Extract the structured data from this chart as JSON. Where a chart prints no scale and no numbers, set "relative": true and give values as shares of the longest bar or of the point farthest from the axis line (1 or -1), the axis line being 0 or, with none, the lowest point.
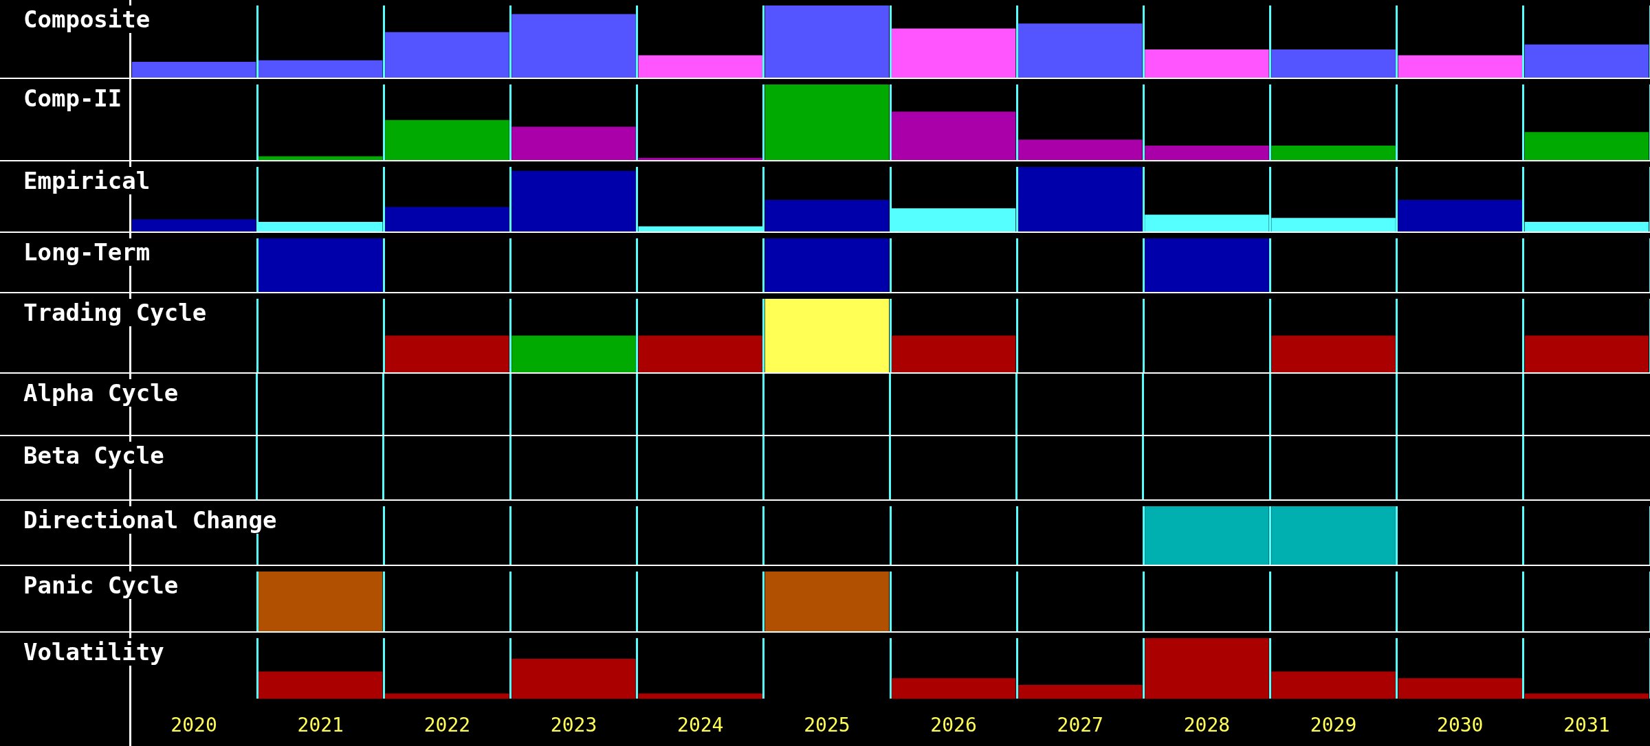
{
  "chart_data": [
    {
      "type": "bar",
      "title": "Composite",
      "categories": [
        "2020",
        "2021",
        "2022",
        "2023",
        "2024",
        "2025",
        "2026",
        "2027",
        "2028",
        "2029",
        "2030",
        "2031"
      ],
      "relative": true,
      "grid": "x",
      "tick_labels": false,
      "values": [
        0.22,
        0.24,
        0.63,
        0.88,
        0.31,
        1,
        0.68,
        0.75,
        0.39,
        0.39,
        0.31,
        0.46
      ],
      "colors": [
        "#5555ff",
        "#5555ff",
        "#5555ff",
        "#5555ff",
        "#ff55ff",
        "#5555ff",
        "#ff55ff",
        "#5555ff",
        "#ff55ff",
        "#5555ff",
        "#ff55ff",
        "#5555ff"
      ]
    },
    {
      "type": "bar",
      "title": "Comp-II",
      "categories": [
        "2020",
        "2021",
        "2022",
        "2023",
        "2024",
        "2025",
        "2026",
        "2027",
        "2028",
        "2029",
        "2030",
        "2031"
      ],
      "relative": true,
      "grid": "x",
      "tick_labels": false,
      "values": [
        null,
        0.05,
        0.53,
        0.44,
        0.03,
        1,
        0.64,
        0.27,
        0.19,
        0.19,
        null,
        0.37
      ],
      "colors": [
        "#00aa00",
        "#00aa00",
        "#00aa00",
        "#aa00aa",
        "#aa00aa",
        "#00aa00",
        "#aa00aa",
        "#aa00aa",
        "#aa00aa",
        "#00aa00",
        "#00aa00",
        "#00aa00"
      ]
    },
    {
      "type": "bar",
      "title": "Empirical",
      "categories": [
        "2020",
        "2021",
        "2022",
        "2023",
        "2024",
        "2025",
        "2026",
        "2027",
        "2028",
        "2029",
        "2030",
        "2031"
      ],
      "relative": true,
      "grid": "x",
      "tick_labels": false,
      "values": [
        0.19,
        0.15,
        0.38,
        0.94,
        0.08,
        0.49,
        0.36,
        1,
        0.26,
        0.21,
        0.49,
        0.15
      ],
      "colors": [
        "#0000aa",
        "#55ffff",
        "#0000aa",
        "#0000aa",
        "#55ffff",
        "#0000aa",
        "#55ffff",
        "#0000aa",
        "#55ffff",
        "#55ffff",
        "#0000aa",
        "#55ffff"
      ]
    },
    {
      "type": "bar",
      "title": "Long-Term",
      "categories": [
        "2020",
        "2021",
        "2022",
        "2023",
        "2024",
        "2025",
        "2026",
        "2027",
        "2028",
        "2029",
        "2030",
        "2031"
      ],
      "relative": true,
      "grid": "x",
      "tick_labels": false,
      "values": [
        null,
        1,
        null,
        null,
        null,
        1,
        null,
        null,
        1,
        null,
        null,
        null
      ],
      "colors": [
        "#0000aa",
        "#0000aa",
        "#0000aa",
        "#0000aa",
        "#0000aa",
        "#0000aa",
        "#0000aa",
        "#0000aa",
        "#0000aa",
        "#0000aa",
        "#0000aa",
        "#0000aa"
      ]
    },
    {
      "type": "bar",
      "title": "Trading Cycle",
      "categories": [
        "2020",
        "2021",
        "2022",
        "2023",
        "2024",
        "2025",
        "2026",
        "2027",
        "2028",
        "2029",
        "2030",
        "2031"
      ],
      "relative": true,
      "grid": "x",
      "tick_labels": false,
      "values": [
        null,
        null,
        0.5,
        0.5,
        0.5,
        1,
        0.5,
        null,
        null,
        0.5,
        null,
        0.5
      ],
      "colors": [
        "#aa0000",
        "#aa0000",
        "#aa0000",
        "#00aa00",
        "#aa0000",
        "#ffff55",
        "#aa0000",
        "#aa0000",
        "#aa0000",
        "#aa0000",
        "#aa0000",
        "#aa0000"
      ]
    },
    {
      "type": "other",
      "title": "Alpha Cycle"
    },
    {
      "type": "other",
      "title": "Beta Cycle"
    },
    {
      "type": "bar",
      "title": "Directional Change",
      "categories": [
        "2020",
        "2021",
        "2022",
        "2023",
        "2024",
        "2025",
        "2026",
        "2027",
        "2028",
        "2029",
        "2030",
        "2031"
      ],
      "relative": true,
      "grid": "x",
      "tick_labels": false,
      "values": [
        null,
        null,
        null,
        null,
        null,
        null,
        null,
        null,
        1,
        1,
        null,
        null
      ],
      "colors": [
        "#00b0b0",
        "#00b0b0",
        "#00b0b0",
        "#00b0b0",
        "#00b0b0",
        "#00b0b0",
        "#00b0b0",
        "#00b0b0",
        "#00b0b0",
        "#00b0b0",
        "#00b0b0",
        "#00b0b0"
      ]
    },
    {
      "type": "bar",
      "title": "Panic Cycle",
      "categories": [
        "2020",
        "2021",
        "2022",
        "2023",
        "2024",
        "2025",
        "2026",
        "2027",
        "2028",
        "2029",
        "2030",
        "2031"
      ],
      "relative": true,
      "grid": "x",
      "tick_labels": false,
      "values": [
        null,
        1,
        null,
        null,
        null,
        1,
        null,
        null,
        null,
        null,
        null,
        null
      ],
      "colors": [
        "#b05000",
        "#b05000",
        "#b05000",
        "#b05000",
        "#b05000",
        "#b05000",
        "#b05000",
        "#b05000",
        "#b05000",
        "#b05000",
        "#b05000",
        "#b05000"
      ]
    },
    {
      "type": "bar",
      "title": "Volatility",
      "categories": [
        "2020",
        "2021",
        "2022",
        "2023",
        "2024",
        "2025",
        "2026",
        "2027",
        "2028",
        "2029",
        "2030",
        "2031"
      ],
      "relative": true,
      "grid": "x",
      "tick_labels": "x",
      "values": [
        null,
        0.45,
        0.09,
        0.66,
        0.09,
        null,
        0.34,
        0.23,
        1,
        0.45,
        0.34,
        0.09
      ],
      "colors": [
        "#aa0000",
        "#aa0000",
        "#aa0000",
        "#aa0000",
        "#aa0000",
        "#aa0000",
        "#aa0000",
        "#aa0000",
        "#aa0000",
        "#aa0000",
        "#aa0000",
        "#aa0000"
      ]
    }
  ]
}
